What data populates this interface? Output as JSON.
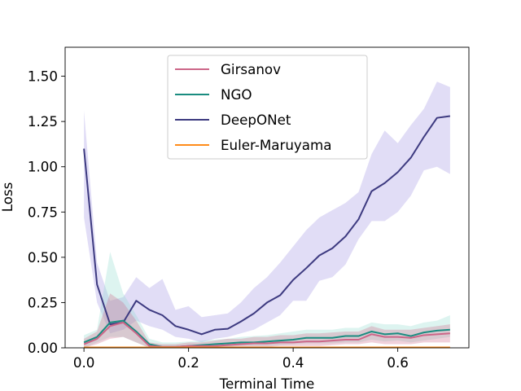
{
  "chart_data": {
    "type": "line",
    "title": "",
    "xlabel": "Terminal Time",
    "ylabel": "Loss",
    "xlim": [
      -0.036,
      0.736
    ],
    "ylim": [
      0.0,
      1.66
    ],
    "xticks": [
      0.0,
      0.2,
      0.4,
      0.6
    ],
    "xtick_labels": [
      "0.0",
      "0.2",
      "0.4",
      "0.6"
    ],
    "yticks": [
      0.0,
      0.25,
      0.5,
      0.75,
      1.0,
      1.25,
      1.5
    ],
    "ytick_labels": [
      "0.00",
      "0.25",
      "0.50",
      "0.75",
      "1.00",
      "1.25",
      "1.50"
    ],
    "grid": false,
    "legend_position": "top-center",
    "x": [
      0.0,
      0.025,
      0.05,
      0.075,
      0.1,
      0.125,
      0.15,
      0.175,
      0.2,
      0.225,
      0.25,
      0.275,
      0.3,
      0.325,
      0.35,
      0.375,
      0.4,
      0.425,
      0.45,
      0.475,
      0.5,
      0.525,
      0.55,
      0.575,
      0.6,
      0.625,
      0.65,
      0.675,
      0.7
    ],
    "series": [
      {
        "name": "Girsanov",
        "color": "#cc6688",
        "values": [
          0.02,
          0.05,
          0.12,
          0.14,
          0.08,
          0.01,
          0.005,
          0.005,
          0.01,
          0.01,
          0.01,
          0.015,
          0.02,
          0.025,
          0.025,
          0.03,
          0.03,
          0.035,
          0.035,
          0.04,
          0.045,
          0.045,
          0.075,
          0.06,
          0.06,
          0.055,
          0.07,
          0.075,
          0.08
        ],
        "lower": [
          0.0,
          0.02,
          0.05,
          0.06,
          0.03,
          0.0,
          0.0,
          0.0,
          0.0,
          0.0,
          0.0,
          0.0,
          0.005,
          0.005,
          0.005,
          0.01,
          0.01,
          0.01,
          0.01,
          0.015,
          0.02,
          0.02,
          0.03,
          0.02,
          0.02,
          0.02,
          0.03,
          0.03,
          0.03
        ],
        "upper": [
          0.05,
          0.09,
          0.3,
          0.25,
          0.15,
          0.03,
          0.02,
          0.02,
          0.03,
          0.03,
          0.04,
          0.05,
          0.05,
          0.06,
          0.06,
          0.07,
          0.07,
          0.08,
          0.08,
          0.085,
          0.09,
          0.09,
          0.12,
          0.1,
          0.1,
          0.1,
          0.11,
          0.12,
          0.13
        ]
      },
      {
        "name": "NGO",
        "color": "#1a8c80",
        "values": [
          0.03,
          0.06,
          0.14,
          0.15,
          0.09,
          0.02,
          0.005,
          0.005,
          0.01,
          0.015,
          0.02,
          0.025,
          0.03,
          0.03,
          0.035,
          0.04,
          0.045,
          0.055,
          0.055,
          0.055,
          0.065,
          0.065,
          0.09,
          0.075,
          0.08,
          0.065,
          0.085,
          0.095,
          0.1
        ],
        "lower": [
          0.0,
          0.03,
          0.06,
          0.06,
          0.03,
          0.0,
          0.0,
          0.0,
          0.0,
          0.0,
          0.005,
          0.005,
          0.01,
          0.01,
          0.01,
          0.015,
          0.02,
          0.025,
          0.025,
          0.025,
          0.03,
          0.03,
          0.045,
          0.035,
          0.04,
          0.03,
          0.04,
          0.05,
          0.06
        ],
        "upper": [
          0.07,
          0.1,
          0.53,
          0.3,
          0.18,
          0.05,
          0.03,
          0.03,
          0.035,
          0.04,
          0.045,
          0.05,
          0.06,
          0.065,
          0.07,
          0.08,
          0.09,
          0.1,
          0.1,
          0.1,
          0.11,
          0.11,
          0.14,
          0.13,
          0.13,
          0.12,
          0.14,
          0.15,
          0.18
        ]
      },
      {
        "name": "DeepONet",
        "color": "#3d3a80",
        "values": [
          1.1,
          0.35,
          0.13,
          0.14,
          0.26,
          0.21,
          0.18,
          0.12,
          0.1,
          0.075,
          0.1,
          0.105,
          0.145,
          0.19,
          0.25,
          0.29,
          0.375,
          0.44,
          0.51,
          0.55,
          0.615,
          0.71,
          0.865,
          0.91,
          0.97,
          1.05,
          1.165,
          1.27,
          1.28
        ],
        "lower": [
          0.72,
          0.25,
          0.08,
          0.1,
          0.15,
          0.12,
          0.1,
          0.06,
          0.05,
          0.03,
          0.05,
          0.06,
          0.08,
          0.1,
          0.14,
          0.18,
          0.26,
          0.26,
          0.37,
          0.39,
          0.46,
          0.6,
          0.7,
          0.7,
          0.75,
          0.84,
          0.98,
          1.0,
          0.96
        ],
        "upper": [
          1.31,
          0.47,
          0.26,
          0.28,
          0.39,
          0.33,
          0.38,
          0.21,
          0.23,
          0.17,
          0.18,
          0.19,
          0.25,
          0.33,
          0.39,
          0.47,
          0.56,
          0.65,
          0.72,
          0.76,
          0.8,
          0.86,
          1.07,
          1.2,
          1.13,
          1.23,
          1.32,
          1.47,
          1.44
        ]
      },
      {
        "name": "Euler-Maruyama",
        "color": "#ff8c1a",
        "values": [
          0.002,
          0.002,
          0.002,
          0.002,
          0.002,
          0.002,
          0.002,
          0.002,
          0.002,
          0.002,
          0.002,
          0.002,
          0.002,
          0.002,
          0.002,
          0.002,
          0.002,
          0.002,
          0.002,
          0.002,
          0.002,
          0.002,
          0.002,
          0.002,
          0.002,
          0.002,
          0.002,
          0.002,
          0.002
        ],
        "lower": [
          0.0,
          0.0,
          0.0,
          0.0,
          0.0,
          0.0,
          0.0,
          0.0,
          0.0,
          0.0,
          0.0,
          0.0,
          0.0,
          0.0,
          0.0,
          0.0,
          0.0,
          0.0,
          0.0,
          0.0,
          0.0,
          0.0,
          0.0,
          0.0,
          0.0,
          0.0,
          0.0,
          0.0,
          0.0
        ],
        "upper": [
          0.005,
          0.005,
          0.005,
          0.005,
          0.005,
          0.005,
          0.005,
          0.005,
          0.005,
          0.005,
          0.005,
          0.005,
          0.005,
          0.005,
          0.005,
          0.005,
          0.005,
          0.005,
          0.005,
          0.005,
          0.005,
          0.005,
          0.005,
          0.005,
          0.005,
          0.005,
          0.005,
          0.005,
          0.005
        ]
      }
    ]
  }
}
